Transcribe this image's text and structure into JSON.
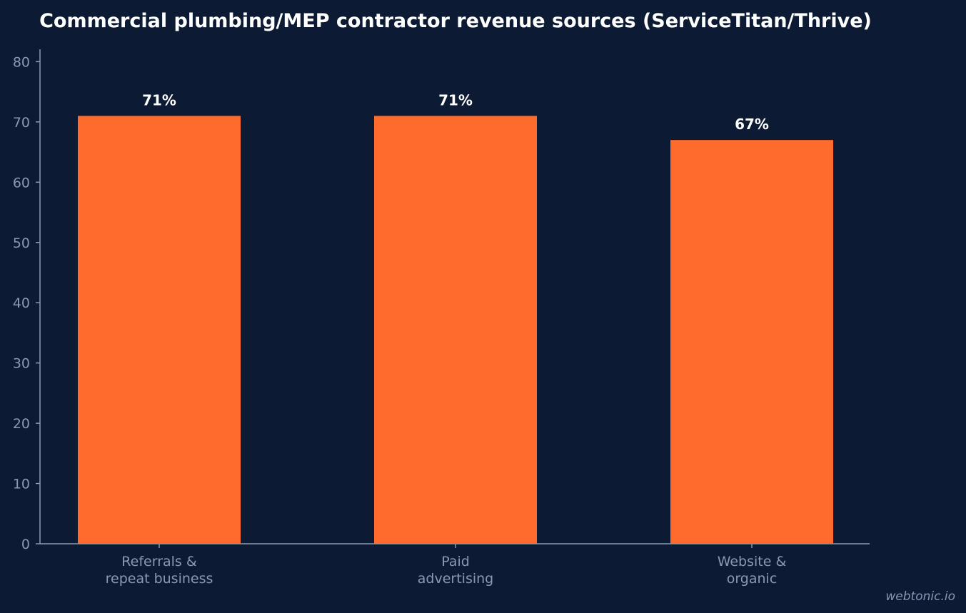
{
  "chart_data": {
    "type": "bar",
    "title": "Commercial plumbing/MEP contractor revenue sources (ServiceTitan/Thrive)",
    "categories": [
      [
        "Referrals &",
        "repeat business"
      ],
      [
        "Paid",
        "advertising"
      ],
      [
        "Website &",
        "organic"
      ]
    ],
    "values": [
      71,
      71,
      67
    ],
    "data_labels": [
      "71%",
      "71%",
      "67%"
    ],
    "xlabel": "",
    "ylabel": "",
    "ylim": [
      0,
      82
    ],
    "yticks": [
      0,
      10,
      20,
      30,
      40,
      50,
      60,
      70,
      80
    ],
    "grid": false,
    "legend": "none",
    "bar_color": "#ff6b2c",
    "background_color": "#0c1b33",
    "axis_color": "#8a99b3"
  },
  "watermark": "webtonic.io"
}
